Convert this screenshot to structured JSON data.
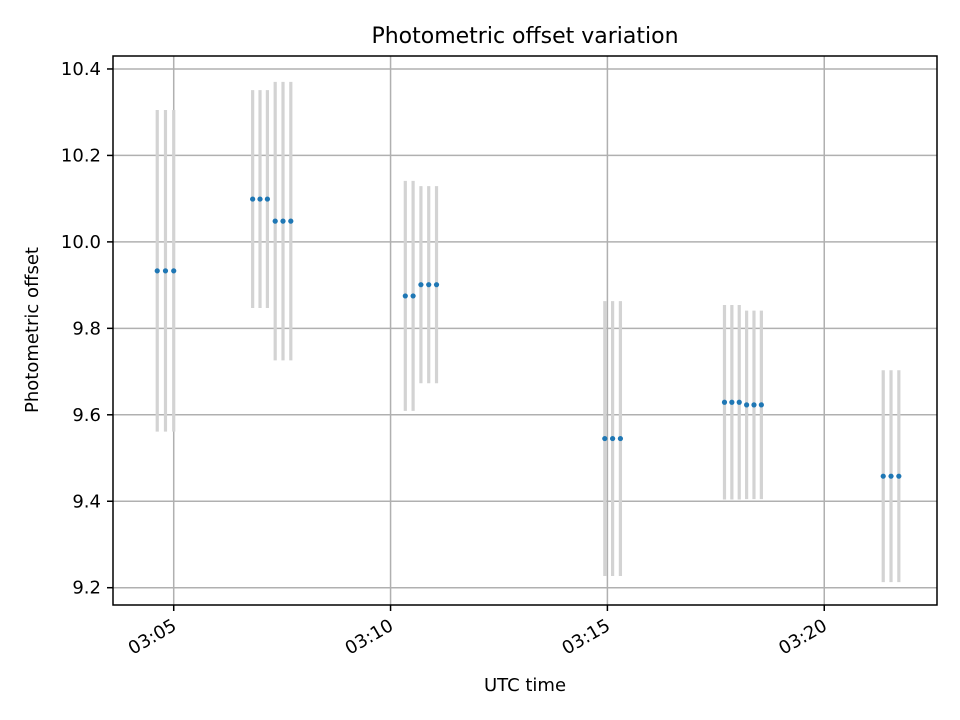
{
  "chart_data": {
    "type": "scatter",
    "title": "Photometric offset variation",
    "xlabel": "UTC time",
    "ylabel": "Photometric offset",
    "x_unit": "minutes after 03:00 UTC",
    "xlim": [
      3.6,
      22.6
    ],
    "ylim": [
      9.16,
      10.43
    ],
    "x_ticks": [
      5,
      10,
      15,
      20
    ],
    "x_tick_labels": [
      "03:05",
      "03:10",
      "03:15",
      "03:20"
    ],
    "y_ticks": [
      9.2,
      9.4,
      9.6,
      9.8,
      10.0,
      10.2,
      10.4
    ],
    "y_tick_labels": [
      "9.2",
      "9.4",
      "9.6",
      "9.8",
      "10.0",
      "10.2",
      "10.4"
    ],
    "grid": true,
    "colors": {
      "points": "#1f77b4",
      "errorbars": "#d3d3d3"
    },
    "points": [
      {
        "x": 4.62,
        "y": 9.933,
        "err": 0.372
      },
      {
        "x": 4.81,
        "y": 9.933,
        "err": 0.372
      },
      {
        "x": 5.0,
        "y": 9.933,
        "err": 0.372
      },
      {
        "x": 6.82,
        "y": 10.099,
        "err": 0.252
      },
      {
        "x": 6.99,
        "y": 10.099,
        "err": 0.252
      },
      {
        "x": 7.16,
        "y": 10.099,
        "err": 0.252
      },
      {
        "x": 7.34,
        "y": 10.048,
        "err": 0.322
      },
      {
        "x": 7.52,
        "y": 10.048,
        "err": 0.322
      },
      {
        "x": 7.7,
        "y": 10.048,
        "err": 0.322
      },
      {
        "x": 10.34,
        "y": 9.875,
        "err": 0.266
      },
      {
        "x": 10.52,
        "y": 9.875,
        "err": 0.266
      },
      {
        "x": 10.7,
        "y": 9.901,
        "err": 0.228
      },
      {
        "x": 10.88,
        "y": 9.901,
        "err": 0.228
      },
      {
        "x": 11.06,
        "y": 9.901,
        "err": 0.228
      },
      {
        "x": 14.94,
        "y": 9.545,
        "err": 0.318
      },
      {
        "x": 15.12,
        "y": 9.545,
        "err": 0.318
      },
      {
        "x": 15.3,
        "y": 9.545,
        "err": 0.318
      },
      {
        "x": 17.7,
        "y": 9.629,
        "err": 0.225
      },
      {
        "x": 17.87,
        "y": 9.629,
        "err": 0.225
      },
      {
        "x": 18.04,
        "y": 9.629,
        "err": 0.225
      },
      {
        "x": 18.21,
        "y": 9.623,
        "err": 0.218
      },
      {
        "x": 18.38,
        "y": 9.623,
        "err": 0.218
      },
      {
        "x": 18.55,
        "y": 9.623,
        "err": 0.218
      },
      {
        "x": 21.36,
        "y": 9.458,
        "err": 0.245
      },
      {
        "x": 21.54,
        "y": 9.458,
        "err": 0.245
      },
      {
        "x": 21.72,
        "y": 9.458,
        "err": 0.245
      }
    ]
  }
}
